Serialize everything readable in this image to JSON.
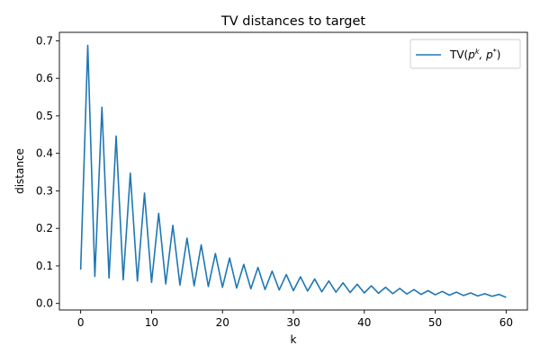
{
  "chart_data": {
    "type": "line",
    "title": "TV  distances to target",
    "xlabel": "k",
    "ylabel": "distance",
    "xlim": [
      -3,
      63
    ],
    "ylim": [
      -0.0175,
      0.7225
    ],
    "xticks": [
      0,
      10,
      20,
      30,
      40,
      50,
      60
    ],
    "xtick_labels": [
      "0",
      "10",
      "20",
      "30",
      "40",
      "50",
      "60"
    ],
    "yticks": [
      0.0,
      0.1,
      0.2,
      0.3,
      0.4,
      0.5,
      0.6,
      0.7
    ],
    "ytick_labels": [
      "0.0",
      "0.1",
      "0.2",
      "0.3",
      "0.4",
      "0.5",
      "0.6",
      "0.7"
    ],
    "grid": false,
    "legend_position": "top-right",
    "series": [
      {
        "name_prefix": "TV(",
        "name_math": "p",
        "name_sup1": "k",
        "name_mid": ", p",
        "name_sup2": "*",
        "name_suffix": ")",
        "color": "#1f77b4",
        "x": [
          0,
          1,
          2,
          3,
          4,
          5,
          6,
          7,
          8,
          9,
          10,
          11,
          12,
          13,
          14,
          15,
          16,
          17,
          18,
          19,
          20,
          21,
          22,
          23,
          24,
          25,
          26,
          27,
          28,
          29,
          30,
          31,
          32,
          33,
          34,
          35,
          36,
          37,
          38,
          39,
          40,
          41,
          42,
          43,
          44,
          45,
          46,
          47,
          48,
          49,
          50,
          51,
          52,
          53,
          54,
          55,
          56,
          57,
          58,
          59,
          60
        ],
        "y": [
          0.09,
          0.688,
          0.072,
          0.523,
          0.068,
          0.446,
          0.063,
          0.347,
          0.06,
          0.294,
          0.056,
          0.24,
          0.052,
          0.208,
          0.049,
          0.174,
          0.047,
          0.156,
          0.045,
          0.133,
          0.043,
          0.121,
          0.041,
          0.104,
          0.039,
          0.096,
          0.037,
          0.086,
          0.036,
          0.077,
          0.034,
          0.071,
          0.033,
          0.065,
          0.031,
          0.06,
          0.03,
          0.055,
          0.029,
          0.051,
          0.028,
          0.047,
          0.027,
          0.043,
          0.026,
          0.04,
          0.025,
          0.037,
          0.024,
          0.034,
          0.023,
          0.032,
          0.022,
          0.03,
          0.021,
          0.028,
          0.02,
          0.026,
          0.019,
          0.024,
          0.016
        ]
      }
    ]
  }
}
